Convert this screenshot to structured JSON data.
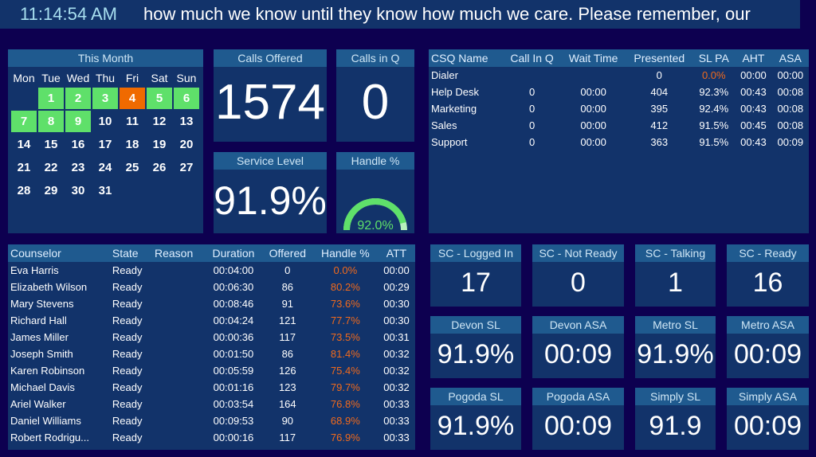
{
  "top": {
    "clock": "11:14:54 AM",
    "ticker": "how much we know until they know how much we care.  Please remember, our"
  },
  "calendar": {
    "title": "This Month",
    "days_of_week": [
      "Mon",
      "Tue",
      "Wed",
      "Thu",
      "Fri",
      "Sat",
      "Sun"
    ],
    "leading_blanks": 1,
    "days": [
      {
        "d": "1",
        "s": "g"
      },
      {
        "d": "2",
        "s": "g"
      },
      {
        "d": "3",
        "s": "g"
      },
      {
        "d": "4",
        "s": "o"
      },
      {
        "d": "5",
        "s": "g"
      },
      {
        "d": "6",
        "s": "g"
      },
      {
        "d": "7",
        "s": "g"
      },
      {
        "d": "8",
        "s": "g"
      },
      {
        "d": "9",
        "s": "g"
      },
      {
        "d": "10"
      },
      {
        "d": "11"
      },
      {
        "d": "12"
      },
      {
        "d": "13"
      },
      {
        "d": "14"
      },
      {
        "d": "15"
      },
      {
        "d": "16"
      },
      {
        "d": "17"
      },
      {
        "d": "18"
      },
      {
        "d": "19"
      },
      {
        "d": "20"
      },
      {
        "d": "21"
      },
      {
        "d": "22"
      },
      {
        "d": "23"
      },
      {
        "d": "24"
      },
      {
        "d": "25"
      },
      {
        "d": "26"
      },
      {
        "d": "27"
      },
      {
        "d": "28"
      },
      {
        "d": "29"
      },
      {
        "d": "30"
      },
      {
        "d": "31"
      }
    ]
  },
  "kpi": {
    "calls_offered": {
      "label": "Calls Offered",
      "value": "1574"
    },
    "calls_in_q": {
      "label": "Calls in Q",
      "value": "0"
    },
    "service_level": {
      "label": "Service Level",
      "value": "91.9%"
    },
    "handle": {
      "label": "Handle %",
      "value": "92.0%",
      "fraction": 0.92
    }
  },
  "csq": {
    "headers": [
      "CSQ Name",
      "Call In Q",
      "Wait Time",
      "Presented",
      "SL PA",
      "AHT",
      "ASA"
    ],
    "rows": [
      [
        "Dialer",
        "",
        "",
        "0",
        "0.0%",
        "00:00",
        "00:00"
      ],
      [
        "Help Desk",
        "0",
        "00:00",
        "404",
        "92.3%",
        "00:43",
        "00:08"
      ],
      [
        "Marketing",
        "0",
        "00:00",
        "395",
        "92.4%",
        "00:43",
        "00:08"
      ],
      [
        "Sales",
        "0",
        "00:00",
        "412",
        "91.5%",
        "00:45",
        "00:08"
      ],
      [
        "Support",
        "0",
        "00:00",
        "363",
        "91.5%",
        "00:43",
        "00:09"
      ]
    ]
  },
  "counselors": {
    "headers": [
      "Counselor",
      "State",
      "Reason",
      "Duration",
      "Offered",
      "Handle %",
      "ATT"
    ],
    "rows": [
      [
        "Eva Harris",
        "Ready",
        "",
        "00:04:00",
        "0",
        "0.0%",
        "00:00"
      ],
      [
        "Elizabeth Wilson",
        "Ready",
        "",
        "00:06:30",
        "86",
        "80.2%",
        "00:29"
      ],
      [
        "Mary Stevens",
        "Ready",
        "",
        "00:08:46",
        "91",
        "73.6%",
        "00:30"
      ],
      [
        "Richard Hall",
        "Ready",
        "",
        "00:04:24",
        "121",
        "77.7%",
        "00:30"
      ],
      [
        "James Miller",
        "Ready",
        "",
        "00:00:36",
        "117",
        "73.5%",
        "00:31"
      ],
      [
        "Joseph Smith",
        "Ready",
        "",
        "00:01:50",
        "86",
        "81.4%",
        "00:32"
      ],
      [
        "Karen Robinson",
        "Ready",
        "",
        "00:05:59",
        "126",
        "75.4%",
        "00:32"
      ],
      [
        "Michael Davis",
        "Ready",
        "",
        "00:01:16",
        "123",
        "79.7%",
        "00:32"
      ],
      [
        "Ariel Walker",
        "Ready",
        "",
        "00:03:54",
        "164",
        "76.8%",
        "00:33"
      ],
      [
        "Daniel Williams",
        "Ready",
        "",
        "00:09:53",
        "90",
        "68.9%",
        "00:33"
      ],
      [
        "Robert Rodrigu...",
        "Ready",
        "",
        "00:00:16",
        "117",
        "76.9%",
        "00:33"
      ]
    ]
  },
  "tiles": [
    [
      {
        "label": "SC - Logged In",
        "value": "17"
      },
      {
        "label": "SC - Not Ready",
        "value": "0"
      },
      {
        "label": "SC - Talking",
        "value": "1"
      },
      {
        "label": "SC - Ready",
        "value": "16"
      }
    ],
    [
      {
        "label": "Devon SL",
        "value": "91.9%"
      },
      {
        "label": "Devon ASA",
        "value": "00:09"
      },
      {
        "label": "Metro SL",
        "value": "91.9%"
      },
      {
        "label": "Metro ASA",
        "value": "00:09"
      }
    ],
    [
      {
        "label": "Pogoda SL",
        "value": "91.9%"
      },
      {
        "label": "Pogoda ASA",
        "value": "00:09"
      },
      {
        "label": "Simply SL",
        "value": "91.9"
      },
      {
        "label": "Simply ASA",
        "value": "00:09"
      }
    ]
  ],
  "colors": {
    "background": "#0d0050",
    "panel": "#12336a",
    "header": "#1f5a8f",
    "good": "#5fe06a",
    "alert": "#f06a00",
    "bad_text": "#f26a1b"
  }
}
